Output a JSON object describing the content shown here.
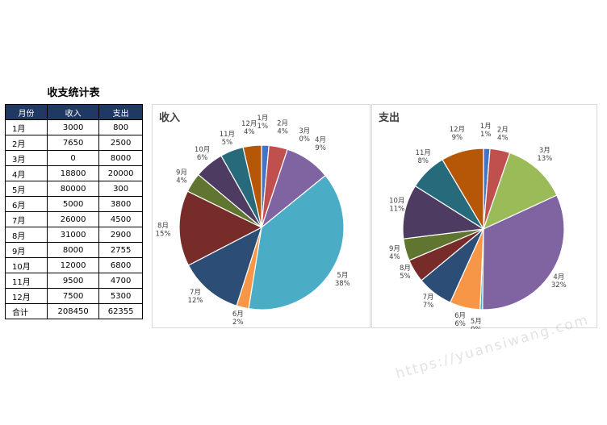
{
  "table": {
    "title": "收支统计表",
    "headers": [
      "月份",
      "收入",
      "支出"
    ],
    "rows": [
      [
        "1月",
        "3000",
        "800"
      ],
      [
        "2月",
        "7650",
        "2500"
      ],
      [
        "3月",
        "0",
        "8000"
      ],
      [
        "4月",
        "18800",
        "20000"
      ],
      [
        "5月",
        "80000",
        "300"
      ],
      [
        "6月",
        "5000",
        "3800"
      ],
      [
        "7月",
        "26000",
        "4500"
      ],
      [
        "8月",
        "31000",
        "2900"
      ],
      [
        "9月",
        "8000",
        "2755"
      ],
      [
        "10月",
        "12000",
        "6800"
      ],
      [
        "11月",
        "9500",
        "4700"
      ],
      [
        "12月",
        "7500",
        "5300"
      ]
    ],
    "total": [
      "合计",
      "208450",
      "62355"
    ]
  },
  "colors": [
    "#4472c4",
    "#c0504d",
    "#9bbb59",
    "#8064a2",
    "#4bacc6",
    "#f79646",
    "#2c4d75",
    "#772c2a",
    "#5f7530",
    "#4d3b62",
    "#276a7c",
    "#b65708"
  ],
  "chart_data": [
    {
      "type": "pie",
      "title": "收入",
      "categories": [
        "1月",
        "2月",
        "3月",
        "4月",
        "5月",
        "6月",
        "7月",
        "8月",
        "9月",
        "10月",
        "11月",
        "12月"
      ],
      "values": [
        3000,
        7650,
        0,
        18800,
        80000,
        5000,
        26000,
        31000,
        8000,
        12000,
        9500,
        7500
      ],
      "percent_labels": [
        "1%",
        "4%",
        "0%",
        "9%",
        "38%",
        "2%",
        "12%",
        "15%",
        "4%",
        "6%",
        "5%",
        "4%"
      ]
    },
    {
      "type": "pie",
      "title": "支出",
      "categories": [
        "1月",
        "2月",
        "3月",
        "4月",
        "5月",
        "6月",
        "7月",
        "8月",
        "9月",
        "10月",
        "11月",
        "12月"
      ],
      "values": [
        800,
        2500,
        8000,
        20000,
        300,
        3800,
        4500,
        2900,
        2755,
        6800,
        4700,
        5300
      ],
      "percent_labels": [
        "1%",
        "4%",
        "13%",
        "32%",
        "0%",
        "6%",
        "7%",
        "5%",
        "4%",
        "11%",
        "8%",
        "9%"
      ]
    }
  ],
  "watermark": "https://yuansiwang.com"
}
